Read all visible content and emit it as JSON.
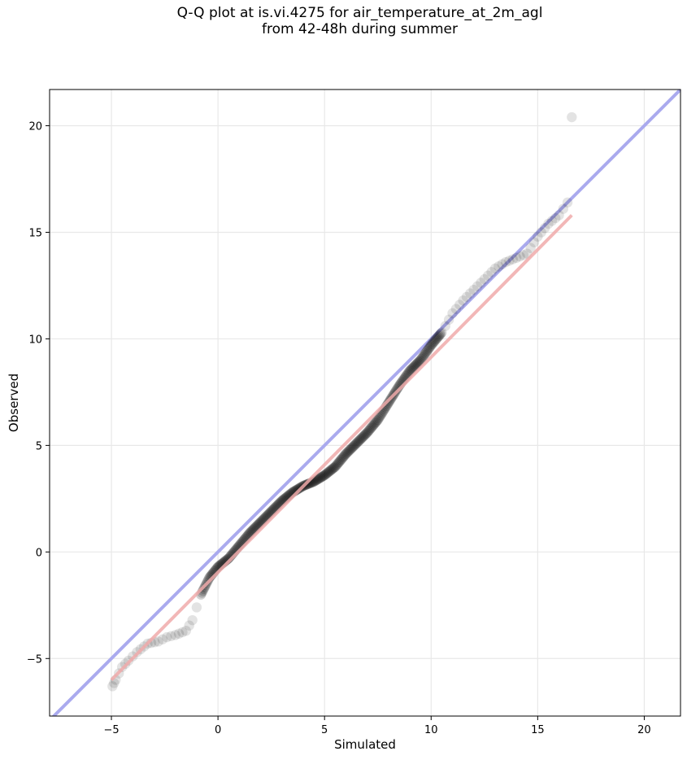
{
  "title_line1": "Q-Q plot at is.vi.4275 for air_temperature_at_2m_agl",
  "title_line2": "from 42-48h during summer",
  "chart_data": {
    "type": "scatter",
    "xlabel": "Simulated",
    "ylabel": "Observed",
    "xlim": [
      -7.9,
      21.7
    ],
    "ylim": [
      -7.7,
      21.7
    ],
    "xticks": [
      -5,
      0,
      5,
      10,
      15,
      20
    ],
    "xtick_labels": [
      "−5",
      "0",
      "5",
      "10",
      "15",
      "20"
    ],
    "yticks": [
      -5,
      0,
      5,
      10,
      15,
      20
    ],
    "ytick_labels": [
      "−5",
      "0",
      "5",
      "10",
      "15",
      "20"
    ],
    "grid": true,
    "reference_line": {
      "color": "#aaaaee",
      "slope": 1,
      "intercept": 0
    },
    "fit_line": {
      "color": "#f0aaaa",
      "x": [
        -5.0,
        16.6
      ],
      "y": [
        -6.0,
        15.8
      ]
    },
    "point_color": "#000000",
    "curve_x": [
      -4.95,
      -4.8,
      -4.5,
      -4.2,
      -3.8,
      -3.3,
      -2.8,
      -2.4,
      -2.0,
      -1.5,
      -1.2,
      -0.8,
      -0.4,
      0.0,
      0.5,
      1.0,
      1.5,
      2.0,
      2.5,
      3.0,
      3.5,
      4.0,
      4.5,
      5.0,
      5.5,
      6.0,
      6.5,
      7.0,
      7.5,
      8.0,
      8.5,
      9.0,
      9.5,
      10.0,
      10.5,
      11.0,
      11.5,
      12.0,
      12.5,
      13.0,
      13.5,
      14.0,
      14.5,
      15.0,
      15.5,
      16.0,
      16.4
    ],
    "curve_y": [
      -6.3,
      -6.0,
      -5.4,
      -5.1,
      -4.7,
      -4.3,
      -4.2,
      -4.0,
      -3.9,
      -3.7,
      -3.2,
      -2.0,
      -1.2,
      -0.7,
      -0.3,
      0.3,
      0.9,
      1.4,
      1.9,
      2.4,
      2.8,
      3.1,
      3.3,
      3.6,
      4.0,
      4.6,
      5.1,
      5.6,
      6.2,
      7.0,
      7.8,
      8.5,
      9.0,
      9.7,
      10.3,
      11.2,
      11.8,
      12.3,
      12.8,
      13.3,
      13.6,
      13.8,
      14.0,
      14.8,
      15.4,
      15.8,
      16.4
    ],
    "outlier": {
      "x": 16.6,
      "y": 20.4
    }
  }
}
